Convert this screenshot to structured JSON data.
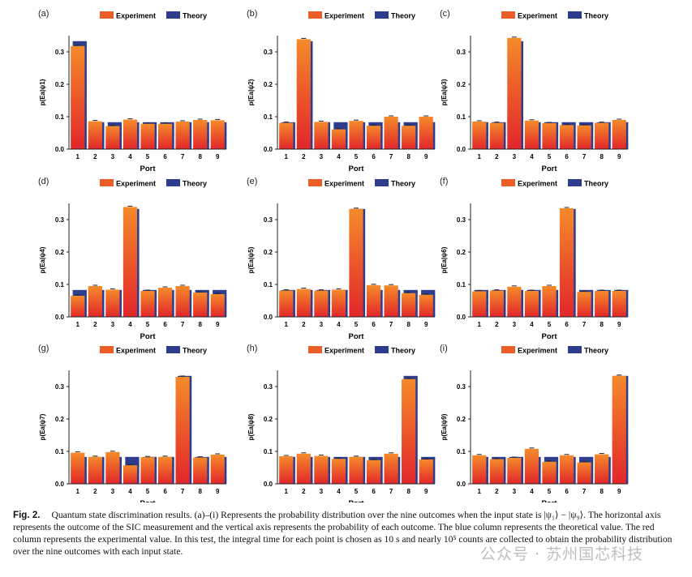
{
  "colors": {
    "experiment_top": "#f58a2a",
    "experiment_bottom": "#e2262a",
    "theory": "#2e3c8e",
    "experiment_swatch": "#ec5e28"
  },
  "figure": {
    "caption_label": "Fig. 2.",
    "caption_text": "Quantum state discrimination results. (a)–(i) Represents the probability distribution over the nine outcomes when the input state is |ψ₁⟩ − |ψ₉⟩. The horizontal axis represents the outcome of the SIC measurement and the vertical axis represents the probability of each outcome. The blue column represents the theoretical value. The red column represents the experimental value. In this test, the integral time for each point is chosen as 10 s and nearly 10⁵ counts are collected to obtain the probability distribution over the nine outcomes with each input state.",
    "watermark": "公众号 · 苏州国芯科技"
  },
  "chart_data": [
    {
      "type": "bar",
      "panel": "(a)",
      "categories": [
        "1",
        "2",
        "3",
        "4",
        "5",
        "6",
        "7",
        "8",
        "9"
      ],
      "ylabel": "p(Ea|ψ1)",
      "xlabel": "Port",
      "ylim": [
        0,
        0.35
      ],
      "yticks": [
        "0.0",
        "0.1",
        "0.2",
        "0.3"
      ],
      "legend": [
        "Experiment",
        "Theory"
      ],
      "series": [
        {
          "name": "Experiment",
          "values": [
            0.318,
            0.086,
            0.071,
            0.091,
            0.078,
            0.078,
            0.085,
            0.09,
            0.089
          ]
        },
        {
          "name": "Theory",
          "values": [
            0.333,
            0.083,
            0.083,
            0.083,
            0.083,
            0.083,
            0.083,
            0.083,
            0.083
          ]
        }
      ]
    },
    {
      "type": "bar",
      "panel": "(b)",
      "categories": [
        "1",
        "2",
        "3",
        "4",
        "5",
        "6",
        "7",
        "8",
        "9"
      ],
      "ylabel": "p(Ea|ψ2)",
      "xlabel": "Port",
      "ylim": [
        0,
        0.35
      ],
      "yticks": [
        "0.0",
        "0.1",
        "0.2",
        "0.3"
      ],
      "legend": [
        "Experiment",
        "Theory"
      ],
      "series": [
        {
          "name": "Experiment",
          "values": [
            0.081,
            0.339,
            0.084,
            0.061,
            0.087,
            0.072,
            0.1,
            0.072,
            0.1
          ]
        },
        {
          "name": "Theory",
          "values": [
            0.083,
            0.333,
            0.083,
            0.083,
            0.083,
            0.083,
            0.083,
            0.083,
            0.083
          ]
        }
      ]
    },
    {
      "type": "bar",
      "panel": "(c)",
      "categories": [
        "1",
        "2",
        "3",
        "4",
        "5",
        "6",
        "7",
        "8",
        "9"
      ],
      "ylabel": "p(Ea|ψ3)",
      "xlabel": "Port",
      "ylim": [
        0,
        0.35
      ],
      "yticks": [
        "0.0",
        "0.1",
        "0.2",
        "0.3"
      ],
      "legend": [
        "Experiment",
        "Theory"
      ],
      "series": [
        {
          "name": "Experiment",
          "values": [
            0.085,
            0.081,
            0.343,
            0.088,
            0.08,
            0.074,
            0.073,
            0.081,
            0.09
          ]
        },
        {
          "name": "Theory",
          "values": [
            0.083,
            0.083,
            0.333,
            0.083,
            0.083,
            0.083,
            0.083,
            0.083,
            0.083
          ]
        }
      ]
    },
    {
      "type": "bar",
      "panel": "(d)",
      "categories": [
        "1",
        "2",
        "3",
        "4",
        "5",
        "6",
        "7",
        "8",
        "9"
      ],
      "ylabel": "p(Ea|ψ4)",
      "xlabel": "Port",
      "ylim": [
        0,
        0.35
      ],
      "yticks": [
        "0.0",
        "0.1",
        "0.2",
        "0.3"
      ],
      "legend": [
        "Experiment",
        "Theory"
      ],
      "series": [
        {
          "name": "Experiment",
          "values": [
            0.065,
            0.095,
            0.084,
            0.339,
            0.08,
            0.09,
            0.095,
            0.075,
            0.07
          ]
        },
        {
          "name": "Theory",
          "values": [
            0.083,
            0.083,
            0.083,
            0.333,
            0.083,
            0.083,
            0.083,
            0.083,
            0.083
          ]
        }
      ]
    },
    {
      "type": "bar",
      "panel": "(e)",
      "categories": [
        "1",
        "2",
        "3",
        "4",
        "5",
        "6",
        "7",
        "8",
        "9"
      ],
      "ylabel": "p(Ea|ψ5)",
      "xlabel": "Port",
      "ylim": [
        0,
        0.35
      ],
      "yticks": [
        "0.0",
        "0.1",
        "0.2",
        "0.3"
      ],
      "legend": [
        "Experiment",
        "Theory"
      ],
      "series": [
        {
          "name": "Experiment",
          "values": [
            0.081,
            0.086,
            0.081,
            0.084,
            0.333,
            0.098,
            0.097,
            0.073,
            0.068
          ]
        },
        {
          "name": "Theory",
          "values": [
            0.083,
            0.083,
            0.083,
            0.083,
            0.333,
            0.083,
            0.083,
            0.083,
            0.083
          ]
        }
      ]
    },
    {
      "type": "bar",
      "panel": "(f)",
      "categories": [
        "1",
        "2",
        "3",
        "4",
        "5",
        "6",
        "7",
        "8",
        "9"
      ],
      "ylabel": "p(Ea|ψ6)",
      "xlabel": "Port",
      "ylim": [
        0,
        0.35
      ],
      "yticks": [
        "0.0",
        "0.1",
        "0.2",
        "0.3"
      ],
      "legend": [
        "Experiment",
        "Theory"
      ],
      "series": [
        {
          "name": "Experiment",
          "values": [
            0.079,
            0.081,
            0.093,
            0.08,
            0.095,
            0.335,
            0.077,
            0.08,
            0.08
          ]
        },
        {
          "name": "Theory",
          "values": [
            0.083,
            0.083,
            0.083,
            0.083,
            0.083,
            0.333,
            0.083,
            0.083,
            0.083
          ]
        }
      ]
    },
    {
      "type": "bar",
      "panel": "(g)",
      "categories": [
        "1",
        "2",
        "3",
        "4",
        "5",
        "6",
        "7",
        "8",
        "9"
      ],
      "ylabel": "p(Ea|ψ7)",
      "xlabel": "Port",
      "ylim": [
        0,
        0.35
      ],
      "yticks": [
        "0.0",
        "0.1",
        "0.2",
        "0.3"
      ],
      "legend": [
        "Experiment",
        "Theory"
      ],
      "series": [
        {
          "name": "Experiment",
          "values": [
            0.096,
            0.083,
            0.098,
            0.057,
            0.082,
            0.083,
            0.33,
            0.081,
            0.09
          ]
        },
        {
          "name": "Theory",
          "values": [
            0.083,
            0.083,
            0.083,
            0.083,
            0.083,
            0.083,
            0.333,
            0.083,
            0.083
          ]
        }
      ]
    },
    {
      "type": "bar",
      "panel": "(h)",
      "categories": [
        "1",
        "2",
        "3",
        "4",
        "5",
        "6",
        "7",
        "8",
        "9"
      ],
      "ylabel": "p(Ea|ψ8)",
      "xlabel": "Port",
      "ylim": [
        0,
        0.35
      ],
      "yticks": [
        "0.0",
        "0.1",
        "0.2",
        "0.3"
      ],
      "legend": [
        "Experiment",
        "Theory"
      ],
      "series": [
        {
          "name": "Experiment",
          "values": [
            0.085,
            0.093,
            0.086,
            0.077,
            0.083,
            0.073,
            0.093,
            0.323,
            0.075
          ]
        },
        {
          "name": "Theory",
          "values": [
            0.083,
            0.083,
            0.083,
            0.083,
            0.083,
            0.083,
            0.083,
            0.333,
            0.083
          ]
        }
      ]
    },
    {
      "type": "bar",
      "panel": "(i)",
      "categories": [
        "1",
        "2",
        "3",
        "4",
        "5",
        "6",
        "7",
        "8",
        "9"
      ],
      "ylabel": "p(Ea|ψ9)",
      "xlabel": "Port",
      "ylim": [
        0,
        0.35
      ],
      "yticks": [
        "0.0",
        "0.1",
        "0.2",
        "0.3"
      ],
      "legend": [
        "Experiment",
        "Theory"
      ],
      "series": [
        {
          "name": "Experiment",
          "values": [
            0.088,
            0.076,
            0.08,
            0.108,
            0.068,
            0.088,
            0.066,
            0.091,
            0.333
          ]
        },
        {
          "name": "Theory",
          "values": [
            0.083,
            0.083,
            0.083,
            0.083,
            0.083,
            0.083,
            0.083,
            0.083,
            0.333
          ]
        }
      ]
    }
  ]
}
